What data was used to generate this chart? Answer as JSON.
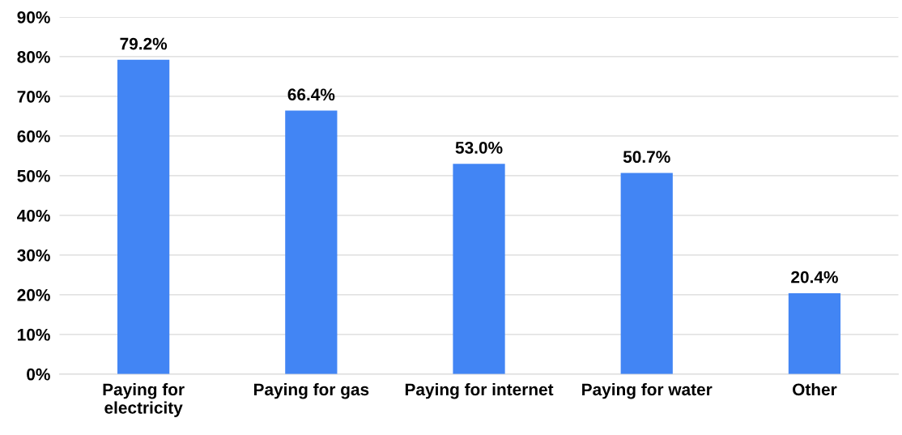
{
  "chart_data": {
    "type": "bar",
    "categories": [
      "Paying for\nelectricity",
      "Paying for gas",
      "Paying for internet",
      "Paying for water",
      "Other"
    ],
    "values": [
      79.2,
      66.4,
      53.0,
      50.7,
      20.4
    ],
    "value_labels": [
      "79.2%",
      "66.4%",
      "53.0%",
      "50.7%",
      "20.4%"
    ],
    "color": "#4285f4",
    "ylim": [
      0,
      90
    ],
    "yticks": [
      {
        "value": 0,
        "label": "0%"
      },
      {
        "value": 10,
        "label": "10%"
      },
      {
        "value": 20,
        "label": "20%"
      },
      {
        "value": 30,
        "label": "30%"
      },
      {
        "value": 40,
        "label": "40%"
      },
      {
        "value": 50,
        "label": "50%"
      },
      {
        "value": 60,
        "label": "60%"
      },
      {
        "value": 70,
        "label": "70%"
      },
      {
        "value": 80,
        "label": "80%"
      },
      {
        "value": 90,
        "label": "90%"
      }
    ],
    "grid": "y"
  }
}
